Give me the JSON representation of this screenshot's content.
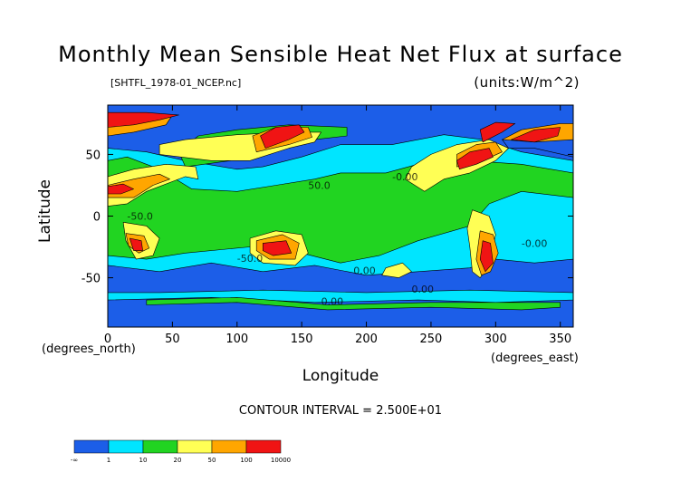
{
  "chart_data": {
    "type": "heatmap",
    "title": "Monthly Mean Sensible Heat Net Flux at surface",
    "subtitle_left": "[SHTFL_1978-01_NCEP.nc]",
    "subtitle_right": "(units:W/m^2)",
    "xlabel": "Longitude",
    "ylabel": "Latitude",
    "x_unit_label": "(degrees_east)",
    "y_unit_label": "(degrees_north)",
    "xlim": [
      0,
      360
    ],
    "ylim": [
      -90,
      90
    ],
    "x_ticks": [
      0,
      50,
      100,
      150,
      200,
      250,
      300,
      350
    ],
    "y_ticks": [
      -50,
      0,
      50
    ],
    "contour_interval_text": "CONTOUR INTERVAL = 2.500E+01",
    "contour_labels": [
      "-50.0",
      "50.0",
      "-0.00",
      "0.00"
    ],
    "color_bins": [
      {
        "color": "#1c5ee8",
        "lower": "-∞",
        "upper": "1"
      },
      {
        "color": "#00e5ff",
        "lower": "1",
        "upper": "10"
      },
      {
        "color": "#21d421",
        "lower": "10",
        "upper": "20"
      },
      {
        "color": "#ffff55",
        "lower": "20",
        "upper": "50"
      },
      {
        "color": "#ffa600",
        "lower": "50",
        "upper": "100"
      },
      {
        "color": "#f01414",
        "lower": "100",
        "upper": "10000"
      }
    ],
    "legend_tick_labels": [
      "-∞",
      "1",
      "10",
      "20",
      "50",
      "100",
      "10000"
    ],
    "regions": [
      {
        "name": "ocean-background",
        "bin": 0,
        "pts": [
          [
            0,
            -90
          ],
          [
            360,
            -90
          ],
          [
            360,
            90
          ],
          [
            0,
            90
          ]
        ]
      },
      {
        "name": "tropics-cyan",
        "bin": 1,
        "pts": [
          [
            0,
            -40
          ],
          [
            40,
            -45
          ],
          [
            80,
            -38
          ],
          [
            120,
            -45
          ],
          [
            160,
            -40
          ],
          [
            200,
            -48
          ],
          [
            240,
            -45
          ],
          [
            280,
            -42
          ],
          [
            300,
            -35
          ],
          [
            330,
            -38
          ],
          [
            360,
            -35
          ],
          [
            360,
            45
          ],
          [
            320,
            52
          ],
          [
            290,
            62
          ],
          [
            260,
            66
          ],
          [
            220,
            58
          ],
          [
            180,
            58
          ],
          [
            150,
            48
          ],
          [
            120,
            40
          ],
          [
            100,
            38
          ],
          [
            60,
            45
          ],
          [
            30,
            52
          ],
          [
            0,
            55
          ]
        ]
      },
      {
        "name": "north-atlantic-dip",
        "bin": 0,
        "pts": [
          [
            305,
            62
          ],
          [
            330,
            70
          ],
          [
            360,
            62
          ],
          [
            360,
            48
          ],
          [
            330,
            55
          ],
          [
            310,
            55
          ]
        ]
      },
      {
        "name": "southern-ocean-cyan-band",
        "bin": 1,
        "pts": [
          [
            0,
            -68
          ],
          [
            80,
            -66
          ],
          [
            160,
            -70
          ],
          [
            240,
            -68
          ],
          [
            300,
            -70
          ],
          [
            360,
            -68
          ],
          [
            360,
            -62
          ],
          [
            280,
            -60
          ],
          [
            200,
            -62
          ],
          [
            120,
            -60
          ],
          [
            40,
            -62
          ],
          [
            0,
            -62
          ]
        ]
      },
      {
        "name": "equatorial-green",
        "bin": 2,
        "pts": [
          [
            0,
            -32
          ],
          [
            30,
            -35
          ],
          [
            60,
            -30
          ],
          [
            110,
            -25
          ],
          [
            150,
            -30
          ],
          [
            180,
            -38
          ],
          [
            210,
            -32
          ],
          [
            240,
            -20
          ],
          [
            280,
            -8
          ],
          [
            295,
            10
          ],
          [
            320,
            20
          ],
          [
            360,
            15
          ],
          [
            360,
            35
          ],
          [
            320,
            42
          ],
          [
            280,
            45
          ],
          [
            250,
            45
          ],
          [
            215,
            35
          ],
          [
            180,
            35
          ],
          [
            160,
            30
          ],
          [
            130,
            25
          ],
          [
            100,
            20
          ],
          [
            65,
            22
          ],
          [
            40,
            38
          ],
          [
            15,
            48
          ],
          [
            0,
            45
          ]
        ]
      },
      {
        "name": "southern-green-band",
        "bin": 2,
        "pts": [
          [
            30,
            -72
          ],
          [
            100,
            -70
          ],
          [
            170,
            -76
          ],
          [
            250,
            -74
          ],
          [
            320,
            -76
          ],
          [
            350,
            -74
          ],
          [
            350,
            -70
          ],
          [
            250,
            -70
          ],
          [
            170,
            -72
          ],
          [
            100,
            -66
          ],
          [
            30,
            -68
          ]
        ]
      },
      {
        "name": "asia-green",
        "bin": 2,
        "pts": [
          [
            60,
            40
          ],
          [
            95,
            45
          ],
          [
            130,
            58
          ],
          [
            160,
            62
          ],
          [
            185,
            65
          ],
          [
            185,
            72
          ],
          [
            140,
            74
          ],
          [
            100,
            70
          ],
          [
            70,
            65
          ],
          [
            55,
            52
          ]
        ]
      },
      {
        "name": "sahara-yellow",
        "bin": 3,
        "pts": [
          [
            0,
            8
          ],
          [
            15,
            10
          ],
          [
            30,
            20
          ],
          [
            50,
            28
          ],
          [
            60,
            32
          ],
          [
            70,
            30
          ],
          [
            68,
            40
          ],
          [
            45,
            42
          ],
          [
            20,
            38
          ],
          [
            0,
            32
          ]
        ]
      },
      {
        "name": "eurasia-yellow",
        "bin": 3,
        "pts": [
          [
            40,
            50
          ],
          [
            80,
            45
          ],
          [
            110,
            45
          ],
          [
            140,
            55
          ],
          [
            160,
            60
          ],
          [
            165,
            68
          ],
          [
            140,
            68
          ],
          [
            100,
            66
          ],
          [
            60,
            62
          ],
          [
            40,
            58
          ]
        ]
      },
      {
        "name": "north-america-yellow",
        "bin": 3,
        "pts": [
          [
            245,
            20
          ],
          [
            260,
            30
          ],
          [
            280,
            35
          ],
          [
            300,
            45
          ],
          [
            310,
            55
          ],
          [
            295,
            62
          ],
          [
            270,
            58
          ],
          [
            250,
            50
          ],
          [
            235,
            40
          ],
          [
            230,
            30
          ]
        ]
      },
      {
        "name": "south-america-yellow",
        "bin": 3,
        "pts": [
          [
            282,
            5
          ],
          [
            295,
            0
          ],
          [
            300,
            -15
          ],
          [
            295,
            -40
          ],
          [
            288,
            -50
          ],
          [
            282,
            -45
          ],
          [
            280,
            -25
          ],
          [
            278,
            -10
          ]
        ]
      },
      {
        "name": "australia-yellow",
        "bin": 3,
        "pts": [
          [
            110,
            -18
          ],
          [
            130,
            -12
          ],
          [
            150,
            -15
          ],
          [
            155,
            -30
          ],
          [
            145,
            -40
          ],
          [
            120,
            -38
          ],
          [
            110,
            -30
          ]
        ]
      },
      {
        "name": "southern-africa-yellow",
        "bin": 3,
        "pts": [
          [
            12,
            -5
          ],
          [
            30,
            -8
          ],
          [
            40,
            -18
          ],
          [
            35,
            -32
          ],
          [
            22,
            -35
          ],
          [
            14,
            -20
          ]
        ]
      },
      {
        "name": "south-pacific-yellow-blob",
        "bin": 3,
        "pts": [
          [
            215,
            -42
          ],
          [
            228,
            -38
          ],
          [
            235,
            -45
          ],
          [
            225,
            -50
          ],
          [
            212,
            -48
          ]
        ]
      },
      {
        "name": "sahara-orange",
        "bin": 4,
        "pts": [
          [
            0,
            15
          ],
          [
            20,
            15
          ],
          [
            35,
            25
          ],
          [
            48,
            30
          ],
          [
            40,
            34
          ],
          [
            20,
            30
          ],
          [
            0,
            25
          ]
        ]
      },
      {
        "name": "siberia-orange",
        "bin": 4,
        "pts": [
          [
            115,
            52
          ],
          [
            140,
            58
          ],
          [
            158,
            64
          ],
          [
            155,
            72
          ],
          [
            130,
            72
          ],
          [
            112,
            65
          ]
        ]
      },
      {
        "name": "north-america-orange",
        "bin": 4,
        "pts": [
          [
            270,
            40
          ],
          [
            290,
            45
          ],
          [
            305,
            52
          ],
          [
            300,
            60
          ],
          [
            285,
            58
          ],
          [
            270,
            50
          ]
        ]
      },
      {
        "name": "greenland-orange",
        "bin": 4,
        "pts": [
          [
            305,
            62
          ],
          [
            320,
            70
          ],
          [
            350,
            75
          ],
          [
            360,
            75
          ],
          [
            360,
            62
          ],
          [
            330,
            60
          ]
        ]
      },
      {
        "name": "arctic-scandinavia-orange",
        "bin": 4,
        "pts": [
          [
            0,
            65
          ],
          [
            20,
            68
          ],
          [
            45,
            74
          ],
          [
            50,
            82
          ],
          [
            20,
            82
          ],
          [
            0,
            80
          ]
        ]
      },
      {
        "name": "south-america-orange",
        "bin": 4,
        "pts": [
          [
            288,
            -12
          ],
          [
            298,
            -15
          ],
          [
            302,
            -30
          ],
          [
            296,
            -45
          ],
          [
            289,
            -48
          ],
          [
            285,
            -35
          ]
        ]
      },
      {
        "name": "australia-orange",
        "bin": 4,
        "pts": [
          [
            115,
            -20
          ],
          [
            135,
            -15
          ],
          [
            148,
            -22
          ],
          [
            145,
            -35
          ],
          [
            125,
            -35
          ],
          [
            115,
            -28
          ]
        ]
      },
      {
        "name": "southern-africa-orange",
        "bin": 4,
        "pts": [
          [
            14,
            -14
          ],
          [
            28,
            -16
          ],
          [
            32,
            -26
          ],
          [
            24,
            -30
          ],
          [
            16,
            -24
          ]
        ]
      },
      {
        "name": "arctic-red",
        "bin": 5,
        "pts": [
          [
            0,
            72
          ],
          [
            20,
            74
          ],
          [
            40,
            78
          ],
          [
            55,
            82
          ],
          [
            30,
            84
          ],
          [
            0,
            84
          ]
        ]
      },
      {
        "name": "siberia-red",
        "bin": 5,
        "pts": [
          [
            122,
            55
          ],
          [
            140,
            62
          ],
          [
            152,
            68
          ],
          [
            148,
            74
          ],
          [
            130,
            72
          ],
          [
            118,
            65
          ]
        ]
      },
      {
        "name": "north-america-red",
        "bin": 5,
        "pts": [
          [
            272,
            38
          ],
          [
            285,
            42
          ],
          [
            298,
            48
          ],
          [
            295,
            55
          ],
          [
            280,
            52
          ],
          [
            270,
            45
          ]
        ]
      },
      {
        "name": "greenland-red",
        "bin": 5,
        "pts": [
          [
            312,
            62
          ],
          [
            330,
            70
          ],
          [
            350,
            72
          ],
          [
            348,
            65
          ],
          [
            330,
            60
          ]
        ]
      },
      {
        "name": "northeast-asia-red",
        "bin": 5,
        "pts": [
          [
            290,
            60
          ],
          [
            305,
            68
          ],
          [
            315,
            75
          ],
          [
            300,
            76
          ],
          [
            288,
            70
          ]
        ]
      },
      {
        "name": "south-america-red",
        "bin": 5,
        "pts": [
          [
            290,
            -20
          ],
          [
            296,
            -22
          ],
          [
            298,
            -38
          ],
          [
            292,
            -45
          ],
          [
            288,
            -35
          ]
        ]
      },
      {
        "name": "australia-red",
        "bin": 5,
        "pts": [
          [
            120,
            -22
          ],
          [
            138,
            -20
          ],
          [
            142,
            -30
          ],
          [
            128,
            -32
          ],
          [
            120,
            -28
          ]
        ]
      },
      {
        "name": "southern-africa-red",
        "bin": 5,
        "pts": [
          [
            17,
            -18
          ],
          [
            26,
            -20
          ],
          [
            27,
            -28
          ],
          [
            20,
            -28
          ]
        ]
      },
      {
        "name": "sahara-red",
        "bin": 5,
        "pts": [
          [
            0,
            18
          ],
          [
            10,
            18
          ],
          [
            20,
            22
          ],
          [
            12,
            26
          ],
          [
            0,
            24
          ]
        ]
      }
    ]
  }
}
